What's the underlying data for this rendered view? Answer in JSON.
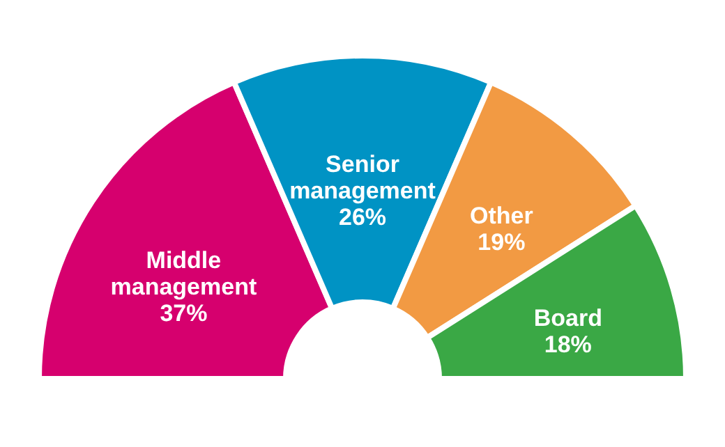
{
  "chart_data": {
    "type": "donut",
    "categories": [
      "Middle management",
      "Senior management",
      "Other",
      "Board"
    ],
    "values": [
      37,
      26,
      19,
      18
    ],
    "colors": [
      "#d6006e",
      "#0093c4",
      "#f29a43",
      "#3aa845"
    ],
    "value_labels": [
      "37%",
      "26%",
      "19%",
      "18%"
    ]
  }
}
